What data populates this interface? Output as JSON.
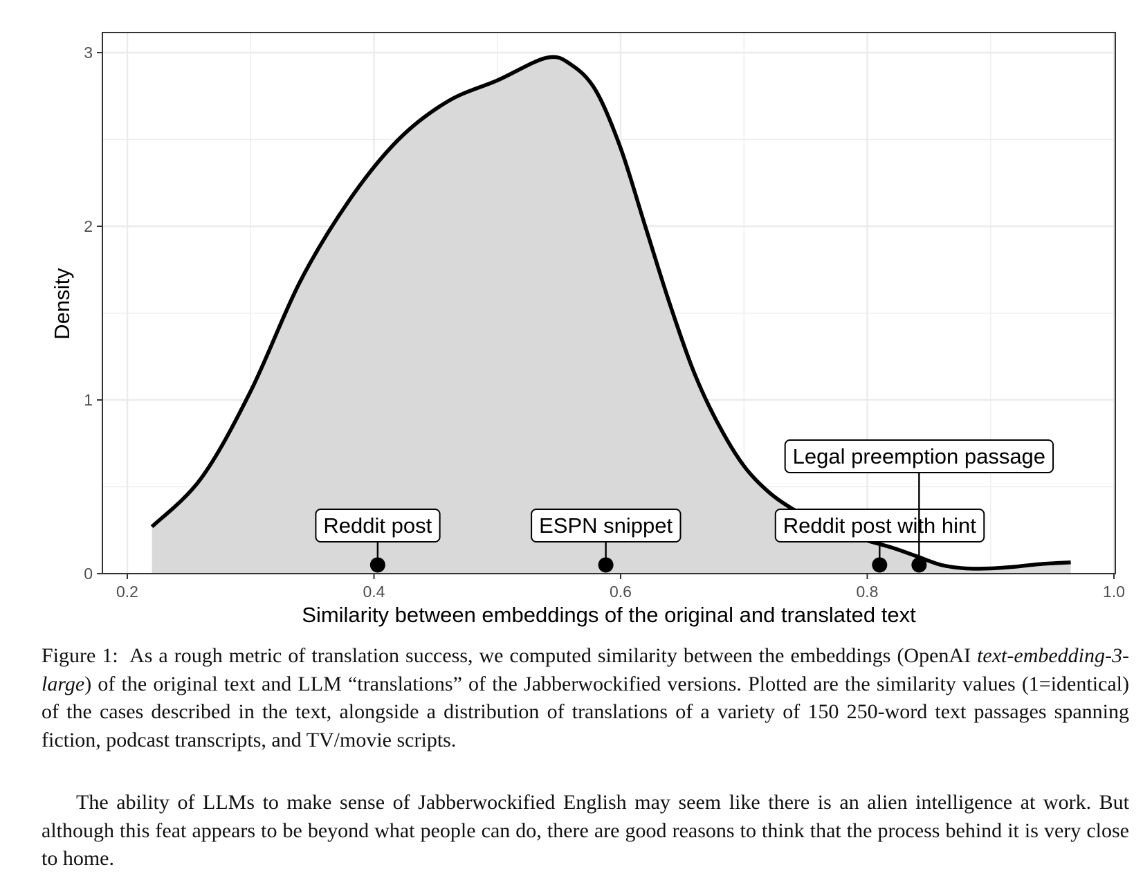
{
  "chart_data": {
    "type": "area",
    "xlabel": "Similarity between embeddings of the original and translated text",
    "ylabel": "Density",
    "xlim": [
      0.18,
      1.0
    ],
    "ylim": [
      0,
      3.1
    ],
    "x_ticks": [
      0.2,
      0.4,
      0.6,
      0.8,
      1.0
    ],
    "x_tick_labels": [
      "0.2",
      "0.4",
      "0.6",
      "0.8",
      "1.0"
    ],
    "y_ticks": [
      0,
      1,
      2,
      3
    ],
    "y_tick_labels": [
      "0",
      "1",
      "2",
      "3"
    ],
    "grid": true,
    "density_curve": {
      "x": [
        0.22,
        0.26,
        0.3,
        0.34,
        0.38,
        0.42,
        0.46,
        0.5,
        0.54,
        0.56,
        0.58,
        0.6,
        0.62,
        0.64,
        0.66,
        0.68,
        0.7,
        0.72,
        0.74,
        0.76,
        0.78,
        0.8,
        0.82,
        0.84,
        0.86,
        0.88,
        0.9,
        0.92,
        0.94,
        0.965
      ],
      "y": [
        0.27,
        0.55,
        1.05,
        1.68,
        2.15,
        2.5,
        2.72,
        2.84,
        2.97,
        2.93,
        2.78,
        2.45,
        2.0,
        1.55,
        1.15,
        0.85,
        0.62,
        0.47,
        0.37,
        0.3,
        0.24,
        0.19,
        0.15,
        0.1,
        0.05,
        0.03,
        0.03,
        0.04,
        0.055,
        0.065
      ]
    },
    "points": [
      {
        "label": "Reddit post",
        "x": 0.403,
        "y": 0.05
      },
      {
        "label": "ESPN snippet",
        "x": 0.588,
        "y": 0.05
      },
      {
        "label": "Reddit post with hint",
        "x": 0.81,
        "y": 0.05
      },
      {
        "label": "Legal preemption passage",
        "x": 0.842,
        "y": 0.05
      }
    ],
    "colors": {
      "fill": "#d9d9d9",
      "curve": "#000000",
      "grid": "#ebebeb",
      "panel_border": "#333333"
    }
  },
  "caption": {
    "label": "Figure 1:",
    "text_before": "As a rough metric of translation success, we computed similarity between the embeddings (OpenAI",
    "model_name": "text-embedding-3-large",
    "text_after": ") of the original text and LLM “translations” of the Jabberwockified versions. Plotted are the similarity values (1=identical) of the cases described in the text, alongside a distribution of translations of a variety of 150 250-word text passages spanning fiction, podcast transcripts, and TV/movie scripts."
  },
  "body_paragraph": "The ability of LLMs to make sense of Jabberwockified English may seem like there is an alien intelligence at work. But although this feat appears to be beyond what people can do, there are good reasons to think that the process behind it is very close to home."
}
